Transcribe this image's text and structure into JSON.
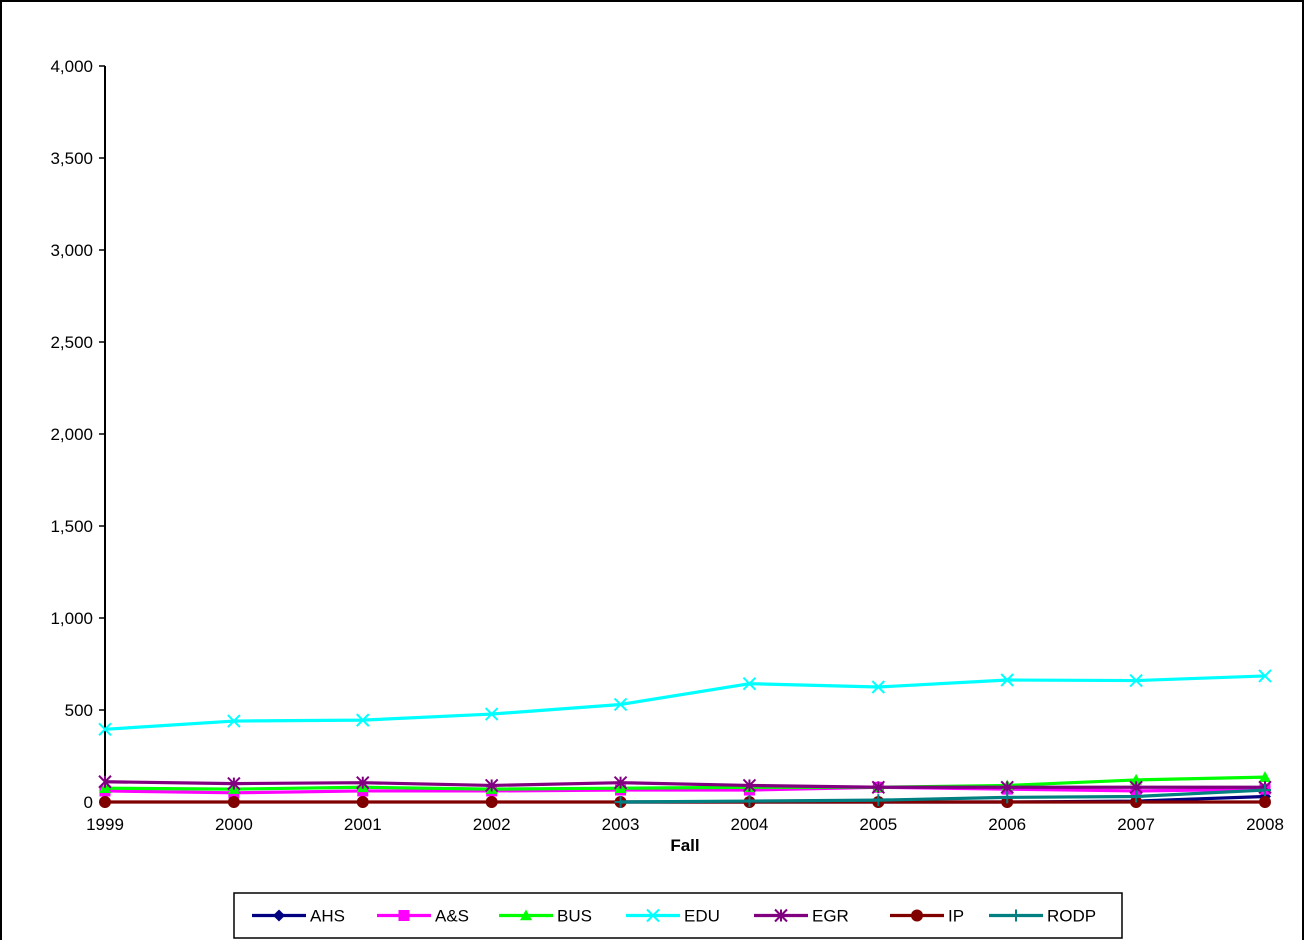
{
  "chart_data": {
    "type": "line",
    "title": "",
    "xlabel": "Fall",
    "ylabel": "",
    "categories": [
      "1999",
      "2000",
      "2001",
      "2002",
      "2003",
      "2004",
      "2005",
      "2006",
      "2007",
      "2008"
    ],
    "ylim": [
      0,
      4000
    ],
    "yticks": [
      0,
      500,
      1000,
      1500,
      2000,
      2500,
      3000,
      3500,
      4000
    ],
    "ytick_labels": [
      "0",
      "500",
      "1,000",
      "1,500",
      "2,000",
      "2,500",
      "3,000",
      "3,500",
      "4,000"
    ],
    "grid": false,
    "legend_position": "bottom",
    "series": [
      {
        "name": "AHS",
        "color": "#000080",
        "marker": "diamond",
        "values": [
          null,
          null,
          null,
          null,
          0,
          0,
          0,
          0,
          5,
          30
        ]
      },
      {
        "name": "A&S",
        "color": "#ff00ff",
        "marker": "square",
        "values": [
          60,
          50,
          60,
          60,
          65,
          65,
          80,
          70,
          60,
          70
        ]
      },
      {
        "name": "BUS",
        "color": "#00ff00",
        "marker": "triangle",
        "values": [
          75,
          70,
          80,
          70,
          75,
          80,
          80,
          90,
          120,
          135
        ]
      },
      {
        "name": "EDU",
        "color": "#00ffff",
        "marker": "x",
        "values": [
          395,
          440,
          445,
          478,
          530,
          643,
          625,
          663,
          660,
          685
        ]
      },
      {
        "name": "EGR",
        "color": "#800080",
        "marker": "star",
        "values": [
          110,
          100,
          105,
          90,
          105,
          90,
          80,
          80,
          80,
          80
        ]
      },
      {
        "name": "IP",
        "color": "#800000",
        "marker": "circle",
        "values": [
          0,
          0,
          0,
          0,
          0,
          0,
          0,
          0,
          0,
          0
        ]
      },
      {
        "name": "RODP",
        "color": "#008080",
        "marker": "plus",
        "values": [
          null,
          null,
          null,
          null,
          0,
          5,
          10,
          25,
          30,
          65
        ]
      }
    ]
  }
}
